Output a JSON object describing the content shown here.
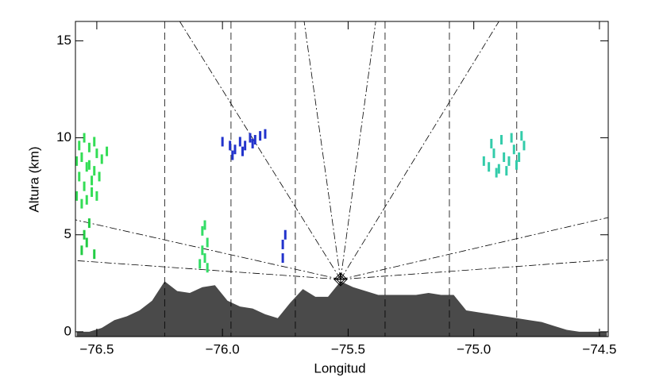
{
  "chart_data": {
    "type": "area",
    "xlabel": "Longitud",
    "ylabel": "Altura (km)",
    "xlim": [
      -76.585,
      -74.465
    ],
    "ylim": [
      -0.25,
      16
    ],
    "xticks": [
      {
        "value": -76.5,
        "label": "−76.5"
      },
      {
        "value": -76.0,
        "label": "−76.0"
      },
      {
        "value": -75.5,
        "label": "−75.5"
      },
      {
        "value": -75.0,
        "label": "−75.0"
      },
      {
        "value": -74.5,
        "label": "−74.5"
      }
    ],
    "yticks": [
      0,
      5,
      10,
      15
    ],
    "terrain": {
      "color": "#4a4a4a",
      "x": [
        -76.58,
        -76.53,
        -76.48,
        -76.43,
        -76.38,
        -76.33,
        -76.28,
        -76.23,
        -76.18,
        -76.13,
        -76.08,
        -76.03,
        -75.98,
        -75.93,
        -75.88,
        -75.83,
        -75.78,
        -75.73,
        -75.68,
        -75.63,
        -75.58,
        -75.53,
        -75.48,
        -75.43,
        -75.38,
        -75.33,
        -75.28,
        -75.23,
        -75.18,
        -75.13,
        -75.08,
        -75.03,
        -74.98,
        -74.93,
        -74.88,
        -74.83,
        -74.78,
        -74.73,
        -74.68,
        -74.63,
        -74.58,
        -74.53,
        -74.47
      ],
      "values": [
        0,
        0,
        0.2,
        0.6,
        0.8,
        1.1,
        1.6,
        2.6,
        2.1,
        2.0,
        2.3,
        2.4,
        1.6,
        1.3,
        1.2,
        0.9,
        0.7,
        1.5,
        2.2,
        1.8,
        1.8,
        2.6,
        2.3,
        2.1,
        1.9,
        1.9,
        1.9,
        1.9,
        2.0,
        1.9,
        1.9,
        1.1,
        1.0,
        0.9,
        0.8,
        0.7,
        0.6,
        0.5,
        0.3,
        0.1,
        0,
        0,
        0
      ]
    },
    "radar": {
      "x": -75.53,
      "y": 2.7
    },
    "vertical_lines": [
      -76.23,
      -75.966,
      -75.71,
      -75.353,
      -75.097,
      -74.829
    ],
    "beam_ends": [
      [
        -76.17,
        16
      ],
      [
        -75.675,
        16
      ],
      [
        -75.39,
        16
      ],
      [
        -74.9,
        16
      ],
      [
        -76.585,
        5.77
      ],
      [
        -76.585,
        3.67
      ],
      [
        -74.465,
        5.89
      ],
      [
        -74.465,
        3.71
      ]
    ],
    "echoes": [
      {
        "color": "#33dd55",
        "x": [
          -76.58,
          -76.57,
          -76.56,
          -76.55,
          -76.54,
          -76.53,
          -76.52,
          -76.51,
          -76.5,
          -76.49,
          -76.58,
          -76.56,
          -76.54,
          -76.52,
          -76.5,
          -76.57,
          -76.55,
          -76.53,
          -76.51,
          -76.48,
          -76.46
        ],
        "y": [
          7.0,
          8.0,
          9.0,
          7.5,
          8.5,
          9.5,
          7.2,
          8.3,
          9.2,
          8.0,
          8.8,
          6.6,
          6.8,
          7.8,
          7.0,
          9.6,
          10.0,
          8.6,
          9.8,
          8.9,
          9.3
        ]
      },
      {
        "color": "#22cc44",
        "x": [
          -76.56,
          -76.55,
          -76.54,
          -76.53,
          -76.51
        ],
        "y": [
          4.2,
          5.0,
          4.6,
          5.6,
          4.0
        ]
      },
      {
        "color": "#33dd66",
        "x": [
          -76.09,
          -76.08,
          -76.07,
          -76.06,
          -76.08,
          -76.07,
          -76.06
        ],
        "y": [
          3.5,
          4.2,
          3.8,
          4.6,
          5.2,
          5.5,
          3.3
        ]
      },
      {
        "color": "#2233cc",
        "x": [
          -75.76,
          -75.76,
          -75.75
        ],
        "y": [
          3.8,
          4.5,
          5.0
        ]
      },
      {
        "color": "#2233cc",
        "x": [
          -76.0,
          -75.97,
          -75.95,
          -75.93,
          -75.91,
          -75.89,
          -75.87,
          -75.85,
          -75.83,
          -75.96,
          -75.92,
          -75.88
        ],
        "y": [
          9.8,
          9.6,
          9.4,
          9.8,
          9.6,
          10.0,
          9.9,
          10.1,
          10.2,
          9.1,
          9.3,
          9.7
        ]
      },
      {
        "color": "#33ccaa",
        "x": [
          -74.96,
          -74.94,
          -74.92,
          -74.9,
          -74.88,
          -74.86,
          -74.84,
          -74.82,
          -74.8,
          -74.93,
          -74.89,
          -74.85,
          -74.81,
          -74.91,
          -74.87,
          -74.83
        ],
        "y": [
          8.8,
          8.5,
          9.2,
          8.4,
          9.0,
          8.8,
          9.4,
          9.0,
          9.6,
          9.7,
          9.9,
          10.0,
          10.1,
          8.2,
          8.3,
          8.6
        ]
      }
    ]
  }
}
